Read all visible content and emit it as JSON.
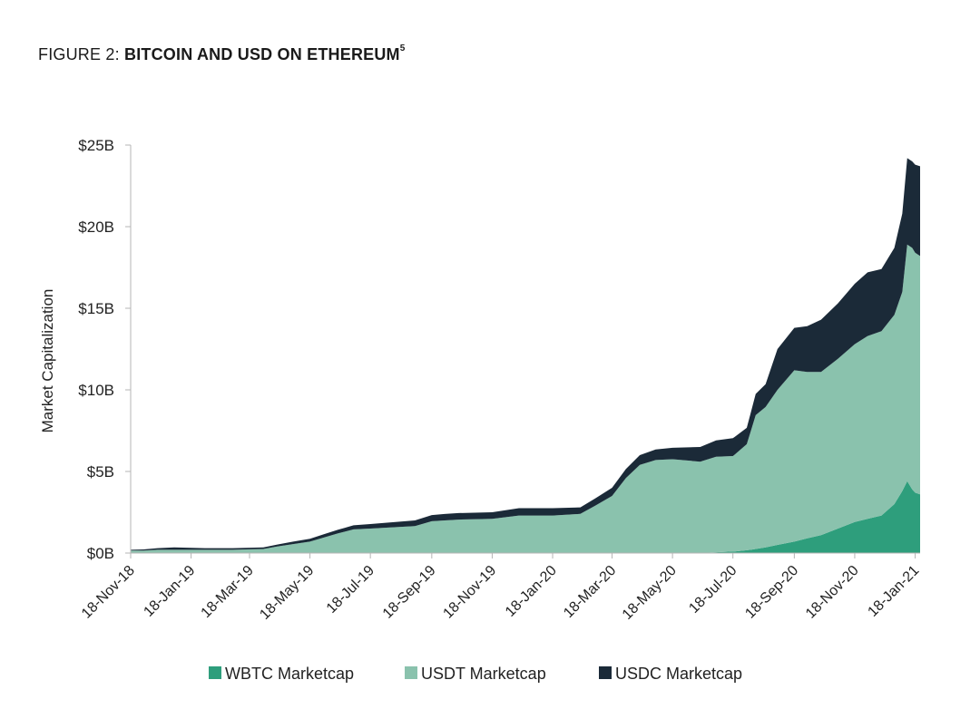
{
  "figure": {
    "label": "FIGURE 2: ",
    "title": "BITCOIN AND USD ON ETHEREUM",
    "superscript": "5"
  },
  "chart_data": {
    "type": "area",
    "stacked": true,
    "title": "BITCOIN AND USD ON ETHEREUM",
    "xlabel": "",
    "ylabel": "Market Capitalization",
    "x_range": [
      "2018-11-18",
      "2021-01-23"
    ],
    "ylim": [
      0,
      25
    ],
    "y_unit": "billion USD",
    "y_ticks": [
      "$0B",
      "$5B",
      "$10B",
      "$15B",
      "$20B",
      "$25B"
    ],
    "x_ticks": [
      "18-Nov-18",
      "18-Jan-19",
      "18-Mar-19",
      "18-May-19",
      "18-Jul-19",
      "18-Sep-19",
      "18-Nov-19",
      "18-Jan-20",
      "18-Mar-20",
      "18-May-20",
      "18-Jul-20",
      "18-Sep-20",
      "18-Nov-20",
      "18-Jan-21"
    ],
    "x_tick_dates": [
      "2018-11-18",
      "2019-01-18",
      "2019-03-18",
      "2019-05-18",
      "2019-07-18",
      "2019-09-18",
      "2019-11-18",
      "2020-01-18",
      "2020-03-18",
      "2020-05-18",
      "2020-07-18",
      "2020-09-18",
      "2020-11-18",
      "2021-01-18"
    ],
    "legend_position": "bottom",
    "grid": false,
    "series": [
      {
        "name": "WBTC Marketcap",
        "color": "#2e9e7c",
        "points": [
          [
            "2018-11-18",
            0
          ],
          [
            "2020-06-15",
            0
          ],
          [
            "2020-07-01",
            0.05
          ],
          [
            "2020-07-20",
            0.1
          ],
          [
            "2020-08-05",
            0.2
          ],
          [
            "2020-08-20",
            0.35
          ],
          [
            "2020-09-01",
            0.5
          ],
          [
            "2020-09-18",
            0.7
          ],
          [
            "2020-10-01",
            0.9
          ],
          [
            "2020-10-15",
            1.1
          ],
          [
            "2020-11-01",
            1.5
          ],
          [
            "2020-11-18",
            1.9
          ],
          [
            "2020-12-01",
            2.1
          ],
          [
            "2020-12-15",
            2.3
          ],
          [
            "2020-12-28",
            3.0
          ],
          [
            "2021-01-05",
            3.8
          ],
          [
            "2021-01-10",
            4.4
          ],
          [
            "2021-01-15",
            3.9
          ],
          [
            "2021-01-18",
            3.7
          ],
          [
            "2021-01-23",
            3.6
          ]
        ]
      },
      {
        "name": "USDT Marketcap",
        "color": "#8ac2ad",
        "points": [
          [
            "2018-11-18",
            0.15
          ],
          [
            "2018-12-01",
            0.15
          ],
          [
            "2018-12-15",
            0.2
          ],
          [
            "2019-01-01",
            0.2
          ],
          [
            "2019-02-01",
            0.2
          ],
          [
            "2019-03-01",
            0.2
          ],
          [
            "2019-04-01",
            0.25
          ],
          [
            "2019-04-15",
            0.4
          ],
          [
            "2019-05-01",
            0.55
          ],
          [
            "2019-05-18",
            0.7
          ],
          [
            "2019-06-01",
            0.95
          ],
          [
            "2019-06-15",
            1.2
          ],
          [
            "2019-07-01",
            1.45
          ],
          [
            "2019-07-18",
            1.5
          ],
          [
            "2019-08-01",
            1.55
          ],
          [
            "2019-09-01",
            1.65
          ],
          [
            "2019-09-18",
            1.95
          ],
          [
            "2019-10-15",
            2.05
          ],
          [
            "2019-11-18",
            2.1
          ],
          [
            "2019-12-15",
            2.3
          ],
          [
            "2020-01-18",
            2.3
          ],
          [
            "2020-02-15",
            2.4
          ],
          [
            "2020-03-01",
            2.9
          ],
          [
            "2020-03-18",
            3.5
          ],
          [
            "2020-04-01",
            4.6
          ],
          [
            "2020-04-15",
            5.4
          ],
          [
            "2020-05-01",
            5.7
          ],
          [
            "2020-05-18",
            5.75
          ],
          [
            "2020-06-15",
            5.6
          ],
          [
            "2020-07-01",
            5.85
          ],
          [
            "2020-07-18",
            5.85
          ],
          [
            "2020-08-01",
            6.5
          ],
          [
            "2020-08-10",
            8.2
          ],
          [
            "2020-08-20",
            8.6
          ],
          [
            "2020-09-01",
            9.5
          ],
          [
            "2020-09-18",
            10.5
          ],
          [
            "2020-10-01",
            10.2
          ],
          [
            "2020-10-15",
            10.0
          ],
          [
            "2020-11-01",
            10.4
          ],
          [
            "2020-11-18",
            10.9
          ],
          [
            "2020-12-01",
            11.2
          ],
          [
            "2020-12-15",
            11.3
          ],
          [
            "2020-12-28",
            11.6
          ],
          [
            "2021-01-05",
            12.2
          ],
          [
            "2021-01-10",
            14.5
          ],
          [
            "2021-01-15",
            14.8
          ],
          [
            "2021-01-18",
            14.7
          ],
          [
            "2021-01-23",
            14.6
          ]
        ]
      },
      {
        "name": "USDC Marketcap",
        "color": "#1b2a38",
        "points": [
          [
            "2018-11-18",
            0.05
          ],
          [
            "2018-12-15",
            0.1
          ],
          [
            "2019-01-01",
            0.15
          ],
          [
            "2019-02-01",
            0.1
          ],
          [
            "2019-03-01",
            0.1
          ],
          [
            "2019-04-01",
            0.1
          ],
          [
            "2019-05-01",
            0.15
          ],
          [
            "2019-06-01",
            0.2
          ],
          [
            "2019-07-01",
            0.25
          ],
          [
            "2019-08-01",
            0.3
          ],
          [
            "2019-09-01",
            0.35
          ],
          [
            "2019-10-01",
            0.4
          ],
          [
            "2019-11-18",
            0.4
          ],
          [
            "2019-12-15",
            0.45
          ],
          [
            "2020-01-18",
            0.45
          ],
          [
            "2020-02-15",
            0.4
          ],
          [
            "2020-03-18",
            0.5
          ],
          [
            "2020-04-15",
            0.6
          ],
          [
            "2020-05-18",
            0.7
          ],
          [
            "2020-06-15",
            0.9
          ],
          [
            "2020-07-01",
            1.0
          ],
          [
            "2020-07-18",
            1.1
          ],
          [
            "2020-08-01",
            1.0
          ],
          [
            "2020-08-10",
            1.3
          ],
          [
            "2020-08-20",
            1.4
          ],
          [
            "2020-09-01",
            2.5
          ],
          [
            "2020-09-18",
            2.6
          ],
          [
            "2020-10-01",
            2.8
          ],
          [
            "2020-10-15",
            3.2
          ],
          [
            "2020-11-01",
            3.4
          ],
          [
            "2020-11-18",
            3.7
          ],
          [
            "2020-12-01",
            3.9
          ],
          [
            "2020-12-15",
            3.8
          ],
          [
            "2020-12-28",
            4.1
          ],
          [
            "2021-01-05",
            4.8
          ],
          [
            "2021-01-10",
            5.3
          ],
          [
            "2021-01-15",
            5.3
          ],
          [
            "2021-01-18",
            5.4
          ],
          [
            "2021-01-23",
            5.5
          ]
        ]
      }
    ]
  }
}
